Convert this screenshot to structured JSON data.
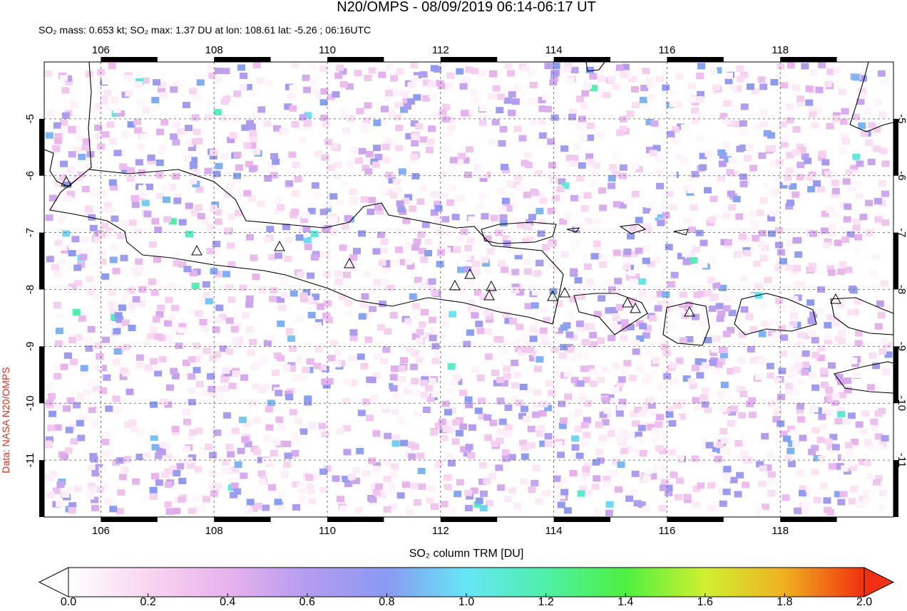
{
  "chart_data": {
    "type": "map",
    "title": "N20/OMPS - 08/09/2019 06:14-06:17 UT",
    "subtitle": "SO₂ mass: 0.653 kt; SO₂ max: 1.37 DU at lon: 108.61 lat: -5.26 ; 06:16UTC",
    "credit": "Data: NASA N20/OMPS",
    "xlim": [
      105,
      120
    ],
    "ylim": [
      -12,
      -4
    ],
    "xticks": [
      106,
      108,
      110,
      112,
      114,
      116,
      118
    ],
    "yticks": [
      -5,
      -6,
      -7,
      -8,
      -9,
      -10,
      -11
    ],
    "grid": true,
    "colorbar": {
      "label": "SO₂ column TRM [DU]",
      "range": [
        0,
        2
      ],
      "ticks": [
        {
          "value": 0,
          "label": "0.0"
        },
        0.2,
        0.4,
        0.6,
        0.8,
        {
          "value": 1,
          "label": "1.0"
        },
        1.2,
        1.4,
        1.6,
        1.8,
        {
          "value": 2,
          "label": "2.0"
        }
      ],
      "colors": [
        "#ffffff",
        "#f9d6f0",
        "#e9b2ee",
        "#b49cf0",
        "#8a9af2",
        "#66e6f6",
        "#4ef0a8",
        "#4ef040",
        "#d0f030",
        "#f0b020",
        "#f03010"
      ]
    }
  }
}
